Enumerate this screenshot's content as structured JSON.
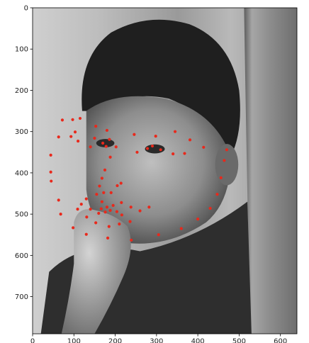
{
  "chart_data": {
    "type": "scatter",
    "title": "",
    "xlabel": "",
    "ylabel": "",
    "xlim": [
      0,
      640
    ],
    "ylim": [
      790,
      0
    ],
    "y_axis_inverted": true,
    "grid": false,
    "background": "grayscale photograph of a child's face (image display, imshow-style)",
    "xticks": [
      0,
      100,
      200,
      300,
      400,
      500,
      600
    ],
    "yticks": [
      0,
      100,
      200,
      300,
      400,
      500,
      600,
      700
    ],
    "point_color": "#e8291c",
    "points": [
      [
        44,
        357
      ],
      [
        44,
        398
      ],
      [
        45,
        420
      ],
      [
        63,
        466
      ],
      [
        68,
        500
      ],
      [
        98,
        533
      ],
      [
        130,
        549
      ],
      [
        182,
        558
      ],
      [
        239,
        563
      ],
      [
        305,
        550
      ],
      [
        360,
        535
      ],
      [
        400,
        512
      ],
      [
        430,
        486
      ],
      [
        447,
        452
      ],
      [
        456,
        412
      ],
      [
        464,
        370
      ],
      [
        470,
        344
      ],
      [
        63,
        313
      ],
      [
        72,
        272
      ],
      [
        97,
        271
      ],
      [
        115,
        268
      ],
      [
        93,
        312
      ],
      [
        103,
        301
      ],
      [
        110,
        323
      ],
      [
        153,
        287
      ],
      [
        180,
        297
      ],
      [
        246,
        307
      ],
      [
        298,
        311
      ],
      [
        345,
        300
      ],
      [
        381,
        320
      ],
      [
        414,
        338
      ],
      [
        140,
        337
      ],
      [
        150,
        316
      ],
      [
        170,
        328
      ],
      [
        186,
        319
      ],
      [
        202,
        337
      ],
      [
        178,
        336
      ],
      [
        253,
        350
      ],
      [
        278,
        341
      ],
      [
        290,
        335
      ],
      [
        310,
        344
      ],
      [
        340,
        354
      ],
      [
        368,
        353
      ],
      [
        188,
        362
      ],
      [
        175,
        393
      ],
      [
        168,
        413
      ],
      [
        162,
        432
      ],
      [
        155,
        452
      ],
      [
        172,
        448
      ],
      [
        190,
        448
      ],
      [
        205,
        431
      ],
      [
        214,
        425
      ],
      [
        130,
        463
      ],
      [
        118,
        476
      ],
      [
        109,
        488
      ],
      [
        140,
        488
      ],
      [
        166,
        487
      ],
      [
        180,
        483
      ],
      [
        195,
        479
      ],
      [
        215,
        472
      ],
      [
        238,
        483
      ],
      [
        260,
        492
      ],
      [
        282,
        483
      ],
      [
        236,
        518
      ],
      [
        210,
        524
      ],
      [
        185,
        530
      ],
      [
        153,
        521
      ],
      [
        131,
        507
      ],
      [
        160,
        498
      ],
      [
        176,
        495
      ],
      [
        188,
        491
      ],
      [
        168,
        470
      ],
      [
        204,
        494
      ],
      [
        216,
        502
      ]
    ]
  }
}
